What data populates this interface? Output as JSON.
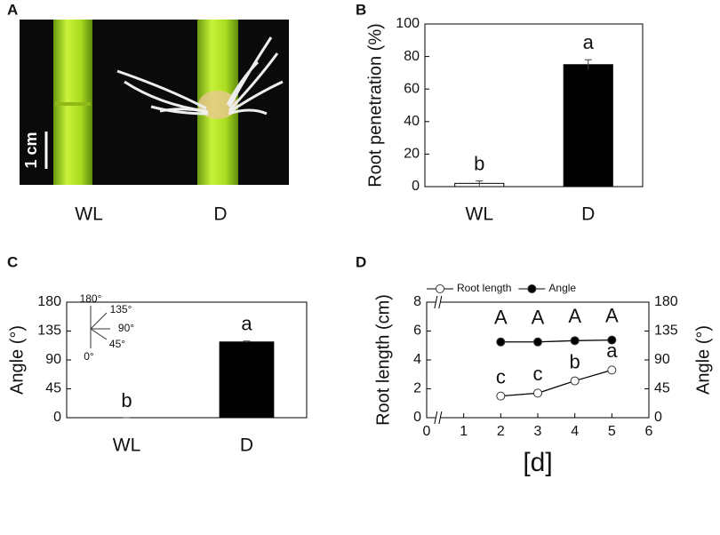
{
  "photo": {
    "label": "A",
    "scale_bar": "1 cm",
    "captions": [
      "WL",
      "D"
    ]
  },
  "chart_data": [
    {
      "type": "bar",
      "label": "B",
      "y_label": "Root penetration (%)",
      "categories": [
        "WL",
        "D"
      ],
      "values": [
        2,
        75
      ],
      "errors": [
        1.5,
        3
      ],
      "colors": [
        "#ffffff",
        "#000000"
      ],
      "annotations": [
        "b",
        "a"
      ],
      "ylim": [
        0,
        100
      ],
      "yticks": [
        0,
        20,
        40,
        60,
        80,
        100
      ]
    },
    {
      "type": "bar",
      "label": "C",
      "y_label": "Angle (°)",
      "categories": [
        "WL",
        "D"
      ],
      "values": [
        0,
        118
      ],
      "errors": [
        0,
        1.5
      ],
      "colors": [
        "#ffffff",
        "#000000"
      ],
      "annotations": [
        "b",
        "a"
      ],
      "inset_labels": [
        "180°",
        "135°",
        "90°",
        "45°",
        "0°"
      ],
      "ylim": [
        0,
        180
      ],
      "yticks": [
        0,
        45,
        90,
        135,
        180
      ]
    },
    {
      "type": "line",
      "label": "D",
      "y_label": "Root length (cm)",
      "y2_label": "Angle (°)",
      "x_label": "[d]",
      "x": [
        2,
        3,
        4,
        5
      ],
      "xlim": [
        0,
        6
      ],
      "xticks": [
        0,
        1,
        2,
        3,
        4,
        5,
        6
      ],
      "ylim": [
        0,
        8
      ],
      "yticks": [
        0,
        2,
        4,
        6,
        8
      ],
      "y2lim": [
        0,
        180
      ],
      "y2ticks": [
        0,
        45,
        90,
        135,
        180
      ],
      "series": [
        {
          "name": "Root length",
          "color": "#ffffff",
          "values": [
            1.5,
            1.7,
            2.55,
            3.3
          ],
          "annotations": [
            "c",
            "c",
            "b",
            "a"
          ]
        },
        {
          "name": "Angle",
          "color": "#000000",
          "axis": "y2",
          "values": [
            118,
            118,
            120,
            121
          ],
          "annotations": [
            "A",
            "A",
            "A",
            "A"
          ]
        }
      ]
    }
  ]
}
